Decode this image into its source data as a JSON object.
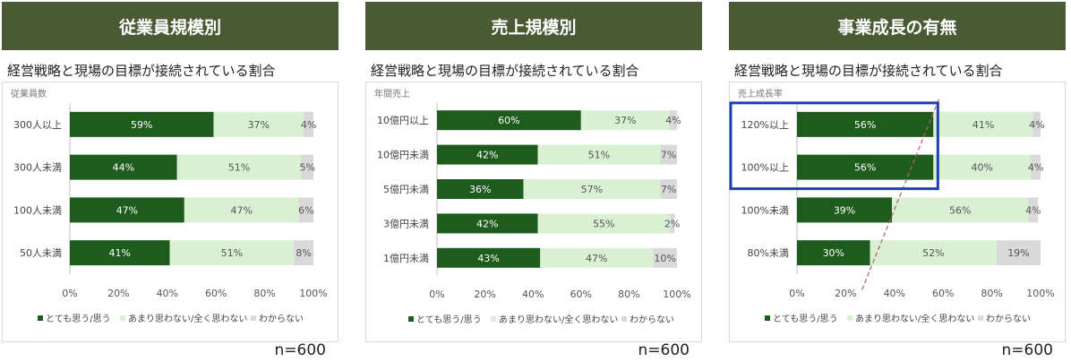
{
  "legend": [
    "とても思う/思う",
    "あまり思わない/全く思わない",
    "わからない"
  ],
  "colors": [
    "#1e5c1e",
    "#d9f0d3",
    "#d9d9d9"
  ],
  "charts": [
    {
      "header": "従業員規模別",
      "subtitle": "経営戦略と現場の目標が接続されている割合",
      "n": "n=600",
      "chart_data": {
        "type": "bar",
        "stacked": true,
        "orientation": "horizontal",
        "axis_title": "従業員数",
        "categories": [
          "300人以上",
          "300人未満",
          "100人未満",
          "50人未満"
        ],
        "series": [
          {
            "name": "とても思う/思う",
            "values": [
              59,
              44,
              47,
              41
            ]
          },
          {
            "name": "あまり思わない/全く思わない",
            "values": [
              37,
              51,
              47,
              51
            ]
          },
          {
            "name": "わからない",
            "values": [
              4,
              5,
              6,
              8
            ]
          }
        ],
        "xlim": [
          0,
          100
        ],
        "xticks": [
          "0%",
          "20%",
          "40%",
          "60%",
          "80%",
          "100%"
        ],
        "legend_position": "bottom"
      }
    },
    {
      "header": "売上規模別",
      "subtitle": "経営戦略と現場の目標が接続されている割合",
      "n": "n=600",
      "chart_data": {
        "type": "bar",
        "stacked": true,
        "orientation": "horizontal",
        "axis_title": "年間売上",
        "categories": [
          "10億円以上",
          "10億円未満",
          "5億円未満",
          "3億円未満",
          "1億円未満"
        ],
        "series": [
          {
            "name": "とても思う/思う",
            "values": [
              60,
              42,
              36,
              42,
              43
            ]
          },
          {
            "name": "あまり思わない/全く思わない",
            "values": [
              37,
              51,
              57,
              55,
              47
            ]
          },
          {
            "name": "わからない",
            "values": [
              4,
              7,
              7,
              2,
              10
            ]
          }
        ],
        "xlim": [
          0,
          100
        ],
        "xticks": [
          "0%",
          "20%",
          "40%",
          "60%",
          "80%",
          "100%"
        ],
        "legend_position": "bottom"
      }
    },
    {
      "header": "事業成長の有無",
      "subtitle": "経営戦略と現場の目標が接続されている割合",
      "n": "n=600",
      "chart_data": {
        "type": "bar",
        "stacked": true,
        "orientation": "horizontal",
        "axis_title": "売上成長率",
        "categories": [
          "120%以上",
          "100%以上",
          "100%未満",
          "80%未満"
        ],
        "series": [
          {
            "name": "とても思う/思う",
            "values": [
              56,
              56,
              39,
              30
            ]
          },
          {
            "name": "あまり思わない/全く思わない",
            "values": [
              41,
              40,
              56,
              52
            ]
          },
          {
            "name": "わからない",
            "values": [
              4,
              4,
              4,
              19
            ]
          }
        ],
        "xlim": [
          0,
          100
        ],
        "xticks": [
          "0%",
          "20%",
          "40%",
          "60%",
          "80%",
          "100%"
        ],
        "legend_position": "bottom",
        "trend_line": true,
        "highlight_categories": [
          "120%以上",
          "100%以上"
        ],
        "highlight_color": "#1f3fb0",
        "trend_color": "#b06070"
      }
    }
  ]
}
